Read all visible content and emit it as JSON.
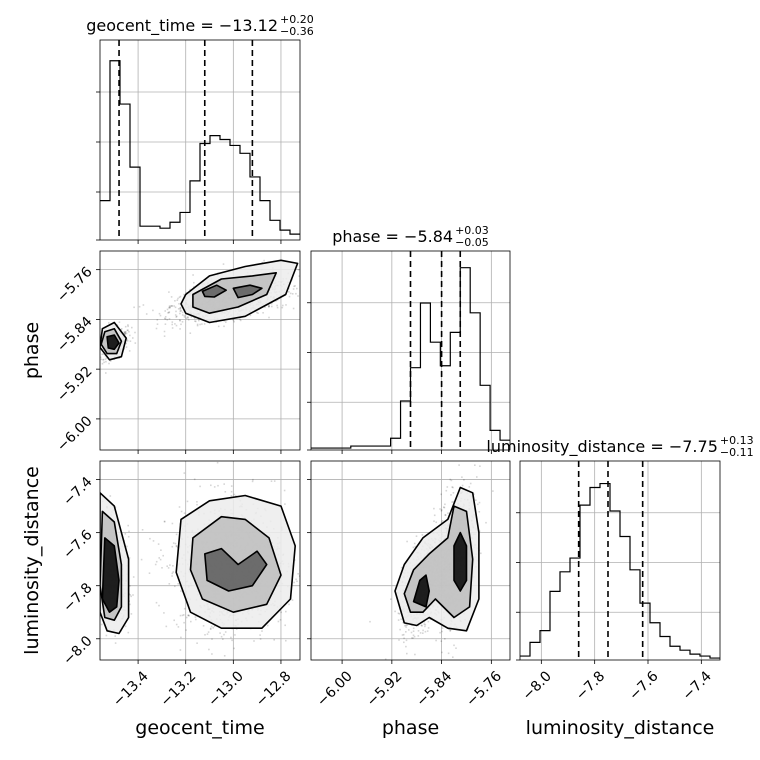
{
  "chart_data": {
    "type": "corner",
    "parameters": [
      {
        "name": "geocent_time",
        "range": [
          -13.56,
          -12.72
        ],
        "ticks": [
          -13.4,
          -13.2,
          -13.0,
          -12.8
        ],
        "median": "−13.12",
        "upper": "+0.20",
        "lower": "−0.36",
        "quantiles": [
          -13.48,
          -13.12,
          -12.92
        ]
      },
      {
        "name": "phase",
        "range": [
          -6.05,
          -5.73
        ],
        "ticks": [
          -6.0,
          -5.92,
          -5.84,
          -5.76
        ],
        "median": "−5.84",
        "upper": "+0.03",
        "lower": "−0.05",
        "quantiles": [
          -5.89,
          -5.84,
          -5.81
        ]
      },
      {
        "name": "luminosity_distance",
        "range": [
          -8.08,
          -7.33
        ],
        "ticks": [
          -8.0,
          -7.8,
          -7.6,
          -7.4
        ],
        "median": "−7.75",
        "upper": "+0.13",
        "lower": "−0.11",
        "quantiles": [
          -7.86,
          -7.75,
          -7.62
        ]
      }
    ],
    "tick_labels": {
      "geocent_time": [
        "−13.4",
        "−13.2",
        "−13.0",
        "−12.8"
      ],
      "phase": [
        "−6.00",
        "−5.92",
        "−5.84",
        "−5.76"
      ],
      "luminosity_distance": [
        "−8.0",
        "−7.8",
        "−7.6",
        "−7.4"
      ]
    },
    "histograms": {
      "geocent_time": [
        0.2,
        0.91,
        0.69,
        0.37,
        0.07,
        0.07,
        0.06,
        0.09,
        0.14,
        0.3,
        0.49,
        0.53,
        0.51,
        0.48,
        0.44,
        0.32,
        0.2,
        0.1,
        0.05,
        0.03
      ],
      "phase": [
        0.01,
        0.01,
        0.01,
        0.01,
        0.02,
        0.02,
        0.02,
        0.02,
        0.06,
        0.25,
        0.42,
        0.75,
        0.55,
        0.43,
        0.6,
        0.93,
        0.7,
        0.33,
        0.1,
        0.05
      ],
      "luminosity_distance": [
        0.02,
        0.09,
        0.15,
        0.35,
        0.45,
        0.52,
        0.79,
        0.88,
        0.9,
        0.76,
        0.63,
        0.46,
        0.29,
        0.19,
        0.12,
        0.07,
        0.05,
        0.03,
        0.02,
        0.01
      ]
    },
    "grid": true,
    "legend": "none"
  }
}
